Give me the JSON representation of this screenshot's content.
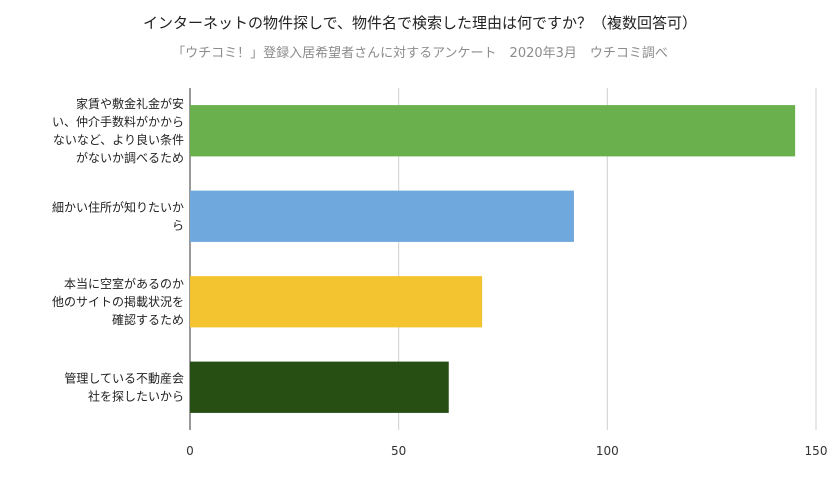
{
  "chart_data": {
    "type": "bar",
    "orientation": "horizontal",
    "title": "インターネットの物件探しで、物件名で検索した理由は何ですか？（複数回答可）",
    "subtitle": "「ウチコミ！」登録入居希望者さんに対するアンケート　2020年3月　ウチコミ調べ",
    "categories": [
      [
        "家賃や敷金礼金が安",
        "い、仲介手数料がかから",
        "ないなど、より良い条件",
        "がないか調べるため"
      ],
      [
        "細かい住所が知りたいか",
        "ら"
      ],
      [
        "本当に空室があるのか",
        "他のサイトの掲載状況を",
        "確認するため"
      ],
      [
        "管理している不動産会",
        "社を探したいから"
      ]
    ],
    "values": [
      145,
      92,
      70,
      62
    ],
    "colors": [
      "#6ab04c",
      "#6fa8dc",
      "#f4c430",
      "#274e13"
    ],
    "xlim": [
      0,
      150
    ],
    "xticks": [
      "0",
      "50",
      "100",
      "150"
    ],
    "grid": true,
    "legend": "none"
  }
}
